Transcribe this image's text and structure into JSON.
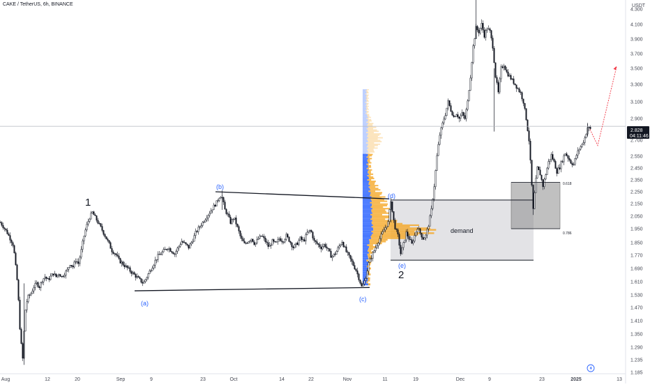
{
  "header": {
    "title": "CAKE / TetherUS, 6h, BINANCE",
    "currency": "USDT"
  },
  "colors": {
    "candle": "#131722",
    "grid": "#d1d4dc",
    "profile_blue": "#2962ff",
    "profile_orange": "#f5a623",
    "demand_zone": "#e0e0e3",
    "fib_zone": "#9b9b9b",
    "projection": "#f23645",
    "wave_label": "#2962ff",
    "price_tag": "#131722"
  },
  "chart_data": {
    "type": "candlestick",
    "symbol": "CAKE / TetherUS",
    "timeframe": "6h",
    "exchange": "BINANCE",
    "x_ticks": [
      "Aug",
      "12",
      "20",
      "Sep",
      "9",
      "23",
      "Oct",
      "14",
      "22",
      "Nov",
      "11",
      "19",
      "Dec",
      "9",
      "23",
      "2025",
      "13"
    ],
    "y_ticks": [
      "4.300",
      "4.100",
      "3.900",
      "3.700",
      "3.500",
      "3.300",
      "3.100",
      "2.900",
      "2.700",
      "2.550",
      "2.450",
      "2.350",
      "2.250",
      "2.150",
      "2.050",
      "1.950",
      "1.850",
      "1.770",
      "1.690",
      "1.610",
      "1.530",
      "1.470",
      "1.410",
      "1.350",
      "1.290",
      "1.235",
      "1.185"
    ],
    "ylim": [
      1.16,
      4.45
    ],
    "current_price": "2.828",
    "countdown": "04:11:46",
    "price_path": [
      [
        0,
        2.0
      ],
      [
        5,
        1.96
      ],
      [
        10,
        1.92
      ],
      [
        14,
        1.88
      ],
      [
        18,
        1.84
      ],
      [
        20,
        1.78
      ],
      [
        22,
        1.7
      ],
      [
        24,
        1.62
      ],
      [
        26,
        1.5
      ],
      [
        28,
        1.38
      ],
      [
        30,
        1.3
      ],
      [
        32,
        1.24
      ],
      [
        34,
        1.36
      ],
      [
        36,
        1.46
      ],
      [
        38,
        1.5
      ],
      [
        40,
        1.52
      ],
      [
        44,
        1.54
      ],
      [
        48,
        1.58
      ],
      [
        52,
        1.6
      ],
      [
        56,
        1.58
      ],
      [
        60,
        1.62
      ],
      [
        64,
        1.64
      ],
      [
        68,
        1.62
      ],
      [
        72,
        1.64
      ],
      [
        76,
        1.66
      ],
      [
        80,
        1.64
      ],
      [
        84,
        1.66
      ],
      [
        88,
        1.64
      ],
      [
        92,
        1.66
      ],
      [
        96,
        1.68
      ],
      [
        100,
        1.72
      ],
      [
        104,
        1.7
      ],
      [
        108,
        1.74
      ],
      [
        112,
        1.72
      ],
      [
        116,
        1.8
      ],
      [
        120,
        1.9
      ],
      [
        124,
        1.98
      ],
      [
        128,
        2.04
      ],
      [
        132,
        2.08
      ],
      [
        136,
        2.04
      ],
      [
        140,
        2.0
      ],
      [
        144,
        1.96
      ],
      [
        148,
        1.92
      ],
      [
        152,
        1.88
      ],
      [
        156,
        1.84
      ],
      [
        160,
        1.8
      ],
      [
        165,
        1.78
      ],
      [
        170,
        1.74
      ],
      [
        175,
        1.72
      ],
      [
        180,
        1.7
      ],
      [
        185,
        1.68
      ],
      [
        190,
        1.66
      ],
      [
        195,
        1.64
      ],
      [
        200,
        1.62
      ],
      [
        205,
        1.6
      ],
      [
        210,
        1.64
      ],
      [
        215,
        1.68
      ],
      [
        220,
        1.72
      ],
      [
        225,
        1.76
      ],
      [
        230,
        1.78
      ],
      [
        235,
        1.8
      ],
      [
        240,
        1.82
      ],
      [
        245,
        1.8
      ],
      [
        250,
        1.78
      ],
      [
        255,
        1.82
      ],
      [
        260,
        1.86
      ],
      [
        265,
        1.84
      ],
      [
        270,
        1.82
      ],
      [
        275,
        1.86
      ],
      [
        280,
        1.92
      ],
      [
        285,
        1.96
      ],
      [
        290,
        2.0
      ],
      [
        295,
        2.04
      ],
      [
        300,
        2.08
      ],
      [
        305,
        2.12
      ],
      [
        310,
        2.16
      ],
      [
        315,
        2.22
      ],
      [
        318,
        2.2
      ],
      [
        322,
        2.1
      ],
      [
        326,
        2.06
      ],
      [
        330,
        2.0
      ],
      [
        335,
        2.04
      ],
      [
        340,
        1.96
      ],
      [
        345,
        1.88
      ],
      [
        350,
        1.84
      ],
      [
        355,
        1.86
      ],
      [
        360,
        1.88
      ],
      [
        365,
        1.84
      ],
      [
        370,
        1.88
      ],
      [
        375,
        1.9
      ],
      [
        380,
        1.86
      ],
      [
        385,
        1.82
      ],
      [
        390,
        1.86
      ],
      [
        395,
        1.84
      ],
      [
        400,
        1.88
      ],
      [
        405,
        1.86
      ],
      [
        410,
        1.9
      ],
      [
        415,
        1.86
      ],
      [
        420,
        1.82
      ],
      [
        425,
        1.84
      ],
      [
        430,
        1.88
      ],
      [
        435,
        1.86
      ],
      [
        440,
        1.92
      ],
      [
        445,
        1.94
      ],
      [
        450,
        1.86
      ],
      [
        455,
        1.84
      ],
      [
        460,
        1.82
      ],
      [
        465,
        1.84
      ],
      [
        470,
        1.8
      ],
      [
        475,
        1.76
      ],
      [
        480,
        1.78
      ],
      [
        485,
        1.82
      ],
      [
        490,
        1.86
      ],
      [
        495,
        1.8
      ],
      [
        500,
        1.76
      ],
      [
        505,
        1.72
      ],
      [
        510,
        1.68
      ],
      [
        515,
        1.62
      ],
      [
        518,
        1.58
      ],
      [
        521,
        1.6
      ],
      [
        524,
        1.64
      ],
      [
        528,
        1.72
      ],
      [
        532,
        1.76
      ],
      [
        536,
        1.8
      ],
      [
        540,
        1.84
      ],
      [
        544,
        1.88
      ],
      [
        548,
        1.92
      ],
      [
        552,
        1.96
      ],
      [
        556,
        2.0
      ],
      [
        560,
        2.18
      ],
      [
        563,
        2.04
      ],
      [
        566,
        1.96
      ],
      [
        570,
        1.9
      ],
      [
        574,
        1.78
      ],
      [
        578,
        1.84
      ],
      [
        582,
        1.92
      ],
      [
        586,
        1.88
      ],
      [
        590,
        1.84
      ],
      [
        594,
        1.9
      ],
      [
        598,
        1.96
      ],
      [
        602,
        1.92
      ],
      [
        606,
        1.88
      ],
      [
        610,
        1.9
      ],
      [
        614,
        1.98
      ],
      [
        618,
        2.1
      ],
      [
        622,
        2.3
      ],
      [
        626,
        2.55
      ],
      [
        630,
        2.75
      ],
      [
        634,
        2.85
      ],
      [
        638,
        2.95
      ],
      [
        642,
        3.1
      ],
      [
        646,
        3.0
      ],
      [
        650,
        2.92
      ],
      [
        654,
        2.96
      ],
      [
        658,
        2.9
      ],
      [
        662,
        2.96
      ],
      [
        666,
        2.9
      ],
      [
        670,
        3.1
      ],
      [
        674,
        3.4
      ],
      [
        678,
        3.8
      ],
      [
        682,
        4.05
      ],
      [
        686,
        4.0
      ],
      [
        690,
        4.1
      ],
      [
        694,
        3.95
      ],
      [
        698,
        4.05
      ],
      [
        702,
        4.0
      ],
      [
        706,
        3.8
      ],
      [
        710,
        3.4
      ],
      [
        714,
        3.2
      ],
      [
        718,
        3.5
      ],
      [
        722,
        3.55
      ],
      [
        726,
        3.45
      ],
      [
        730,
        3.4
      ],
      [
        734,
        3.35
      ],
      [
        738,
        3.3
      ],
      [
        742,
        3.25
      ],
      [
        746,
        3.2
      ],
      [
        750,
        3.1
      ],
      [
        754,
        2.9
      ],
      [
        758,
        2.7
      ],
      [
        761,
        2.4
      ],
      [
        764,
        2.1
      ],
      [
        767,
        2.3
      ],
      [
        770,
        2.45
      ],
      [
        774,
        2.4
      ],
      [
        778,
        2.3
      ],
      [
        782,
        2.4
      ],
      [
        786,
        2.5
      ],
      [
        790,
        2.56
      ],
      [
        794,
        2.5
      ],
      [
        798,
        2.42
      ],
      [
        802,
        2.46
      ],
      [
        806,
        2.52
      ],
      [
        810,
        2.58
      ],
      [
        814,
        2.54
      ],
      [
        818,
        2.5
      ],
      [
        822,
        2.48
      ],
      [
        826,
        2.56
      ],
      [
        830,
        2.62
      ],
      [
        834,
        2.66
      ],
      [
        838,
        2.72
      ],
      [
        842,
        2.82
      ],
      [
        846,
        2.8
      ]
    ],
    "annotations": {
      "wave_labels": [
        "1",
        "2"
      ],
      "abcde_labels": [
        "(a)",
        "(b)",
        "(c)",
        "(d)",
        "(e)"
      ],
      "zone_label": "demand",
      "fib_levels": [
        "0.618",
        "0.786"
      ]
    },
    "projection": {
      "from": [
        846,
        2.8
      ],
      "via": [
        857,
        2.65
      ],
      "to": [
        884,
        3.52
      ]
    },
    "zones": {
      "demand_top": 2.18,
      "demand_bottom": 1.74,
      "fib_top": 2.33,
      "fib_bottom": 1.95
    },
    "grid": false,
    "legend": "none"
  }
}
